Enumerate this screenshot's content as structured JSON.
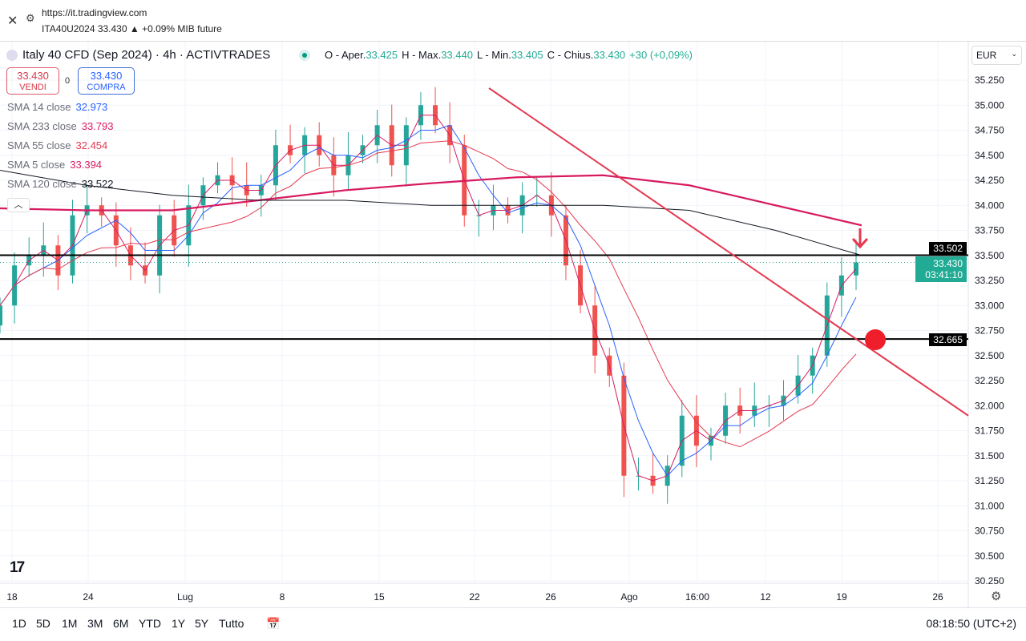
{
  "browser": {
    "url": "https://it.tradingview.com",
    "subtitle": "ITA40U2024 33.430 ▲ +0.09% MIB future"
  },
  "header": {
    "title": "Italy 40 CFD (Sep 2024) · 4h · ACTIVTRADES",
    "ohlc": [
      {
        "label": "O - Aper.",
        "value": "33.425"
      },
      {
        "label": "H - Max.",
        "value": "33.440"
      },
      {
        "label": "L - Min.",
        "value": "33.405"
      },
      {
        "label": "C - Chius.",
        "value": "33.430"
      }
    ],
    "change": "+30 (+0,09%)"
  },
  "trade": {
    "sell_price": "33.430",
    "sell_label": "VENDI",
    "spread": "0",
    "buy_price": "33.430",
    "buy_label": "COMPRA"
  },
  "legend": [
    {
      "name": "SMA 14 close",
      "value": "32.973",
      "color": "#2962ff"
    },
    {
      "name": "SMA 233 close",
      "value": "33.793",
      "color": "#d81b60"
    },
    {
      "name": "SMA 55 close",
      "value": "32.454",
      "color": "#e53950"
    },
    {
      "name": "SMA 5 close",
      "value": "33.394",
      "color": "#d81b60"
    },
    {
      "name": "SMA 120 close",
      "value": "33.522",
      "color": "#131722"
    }
  ],
  "currency": "EUR",
  "price_tags": {
    "line1": "33.502",
    "current": "33.430",
    "countdown": "03:41:10",
    "line2": "32.665"
  },
  "timeframes": [
    "1D",
    "5D",
    "1M",
    "3M",
    "6M",
    "YTD",
    "1Y",
    "5Y",
    "Tutto"
  ],
  "clock": "08:18:50 (UTC+2)",
  "chart_data": {
    "type": "candlestick",
    "ylim": [
      30.25,
      35.25
    ],
    "yticks": [
      "35.250",
      "35.000",
      "34.750",
      "34.500",
      "34.250",
      "34.000",
      "33.750",
      "33.500",
      "33.250",
      "33.000",
      "32.750",
      "32.500",
      "32.250",
      "32.000",
      "31.750",
      "31.500",
      "31.250",
      "31.000",
      "30.750",
      "30.500",
      "30.250"
    ],
    "xticks": [
      "18",
      "24",
      "Lug",
      "8",
      "15",
      "22",
      "26",
      "Ago",
      "16:00",
      "12",
      "19",
      "26"
    ],
    "closes": [
      33.0,
      33.4,
      33.5,
      33.6,
      33.3,
      33.9,
      34.0,
      33.9,
      33.6,
      33.4,
      33.3,
      33.9,
      33.6,
      34.0,
      34.2,
      34.3,
      34.2,
      34.1,
      34.2,
      34.6,
      34.5,
      34.7,
      34.5,
      34.3,
      34.5,
      34.6,
      34.8,
      34.4,
      34.8,
      35.0,
      34.8,
      34.6,
      33.9,
      33.9,
      34.0,
      33.9,
      34.1,
      34.1,
      33.9,
      33.4,
      33.0,
      32.5,
      32.3,
      31.3,
      31.3,
      31.2,
      31.4,
      31.9,
      31.6,
      31.7,
      32.0,
      31.9,
      32.0,
      32.0,
      32.1,
      32.3,
      32.5,
      33.1,
      33.3,
      33.43
    ],
    "sma233": [
      33.97,
      33.95,
      33.95,
      34.05,
      34.15,
      34.22,
      34.28,
      34.3,
      34.2,
      34.0,
      33.8
    ],
    "sma120": [
      34.35,
      34.2,
      34.1,
      34.05,
      34.05,
      34.0,
      34.0,
      34.0,
      33.95,
      33.75,
      33.5
    ],
    "horizontal_lines": [
      33.502,
      32.665
    ],
    "trendline": [
      {
        "x": "22",
        "price": 35.17
      },
      {
        "x": "26 (right edge)",
        "price": 31.9
      }
    ],
    "colors": {
      "up": "#26a69a",
      "down": "#ef5350",
      "trend": "#e53950"
    }
  }
}
